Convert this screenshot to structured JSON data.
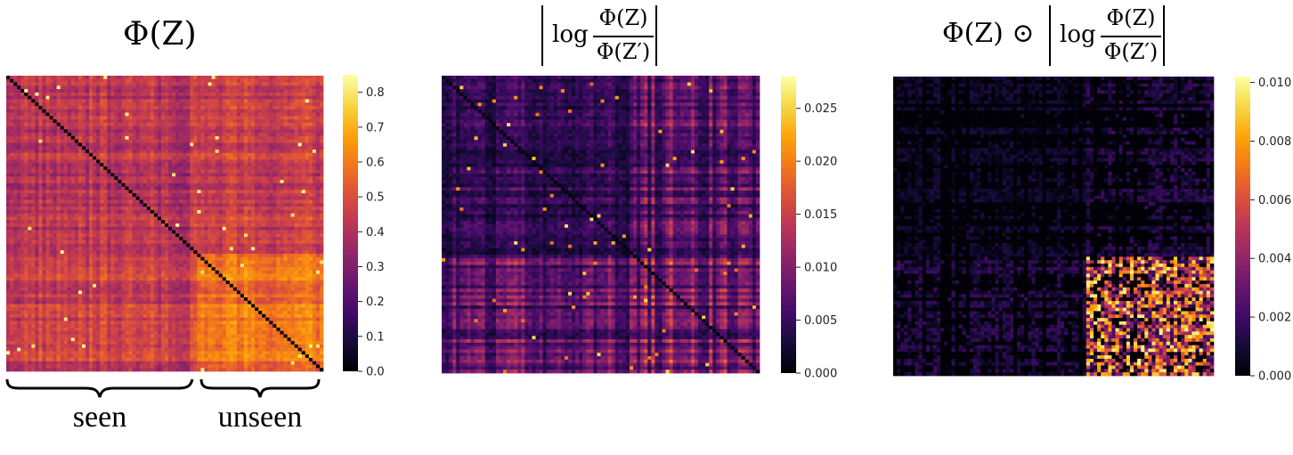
{
  "colormap": "inferno",
  "chart_data": [
    {
      "type": "heatmap",
      "title": "Φ(Z)",
      "matrix_size": [
        88,
        88
      ],
      "diagonal_value": 0.0,
      "block_structure": {
        "seen_fraction": 0.6,
        "seen_seen_typical": 0.42,
        "seen_unseen_typical": 0.45,
        "unseen_unseen_typical": 0.58
      },
      "colorbar": {
        "min": 0.0,
        "max": 0.85,
        "ticks": [
          "0.0",
          "0.1",
          "0.2",
          "0.3",
          "0.4",
          "0.5",
          "0.6",
          "0.7",
          "0.8"
        ]
      },
      "annotations": {
        "left_brace": "seen",
        "right_brace": "unseen"
      },
      "grid": false
    },
    {
      "type": "heatmap",
      "title": "|log Φ(Z) / Φ(Z′)|",
      "title_parts": {
        "prefix": "log",
        "numerator": "Φ(Z)",
        "denominator": "Φ(Z′)"
      },
      "matrix_size": [
        88,
        88
      ],
      "block_structure": {
        "seen_seen_typical": 0.004,
        "seen_unseen_typical": 0.008,
        "unseen_unseen_typical": 0.01
      },
      "colorbar": {
        "min": 0.0,
        "max": 0.028,
        "ticks": [
          "0.000",
          "0.005",
          "0.010",
          "0.015",
          "0.020",
          "0.025"
        ]
      },
      "grid": false
    },
    {
      "type": "heatmap",
      "title": "Φ(Z) ⊙ |log Φ(Z) / Φ(Z′)|",
      "title_parts": {
        "lead": "Φ(Z) ⊙",
        "prefix": "log",
        "numerator": "Φ(Z)",
        "denominator": "Φ(Z′)"
      },
      "matrix_size": [
        88,
        88
      ],
      "block_structure": {
        "seen_seen_typical": 0.0005,
        "seen_unseen_typical": 0.0008,
        "unseen_unseen_typical": 0.004
      },
      "colorbar": {
        "min": 0.0,
        "max": 0.0102,
        "ticks": [
          "0.000",
          "0.002",
          "0.004",
          "0.006",
          "0.008",
          "0.010"
        ]
      },
      "grid": false
    }
  ]
}
